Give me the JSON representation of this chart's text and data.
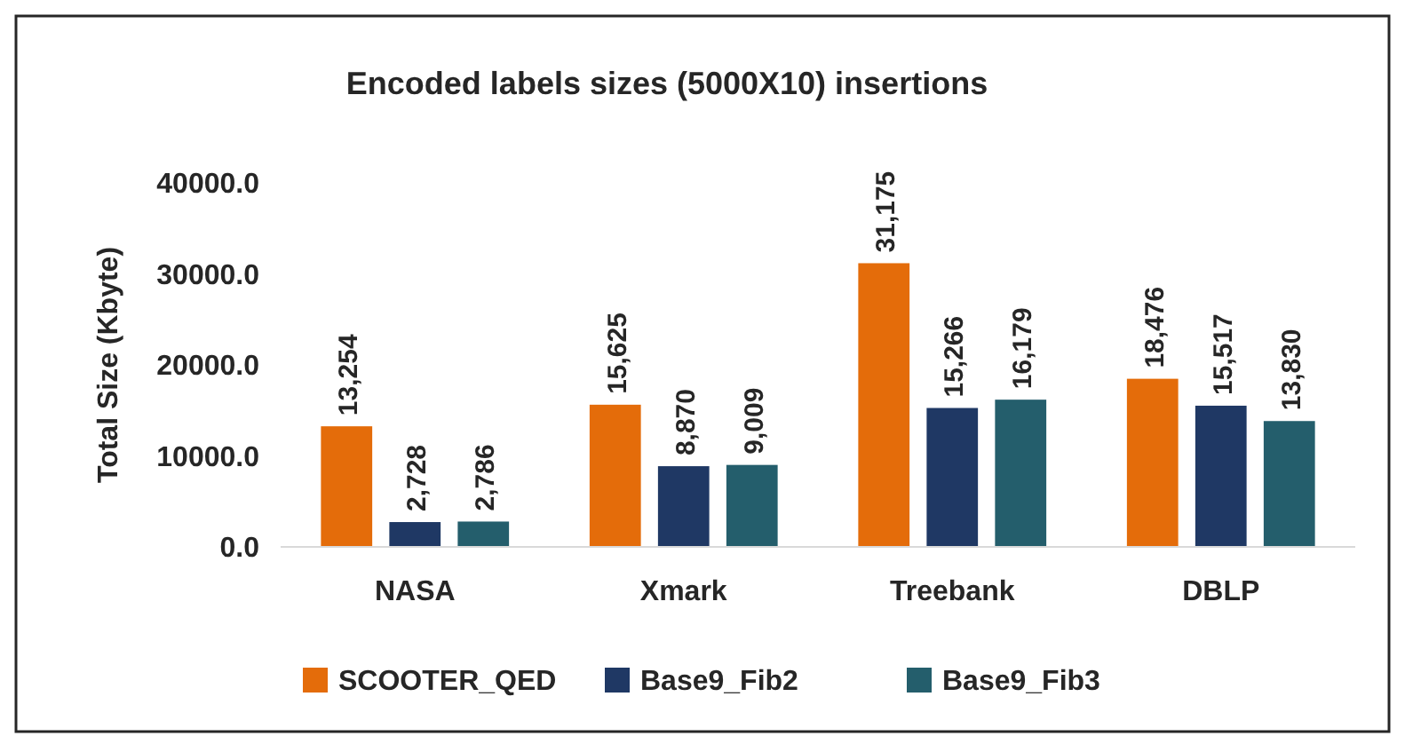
{
  "chart_data": {
    "type": "bar",
    "title": "Encoded labels sizes (5000X10) insertions",
    "ylabel": "Total Size (Kbyte)",
    "categories": [
      "NASA",
      "Xmark",
      "Treebank",
      "DBLP"
    ],
    "series": [
      {
        "name": "SCOOTER_QED",
        "color": "#e46c0a",
        "values": [
          13254,
          15625,
          31175,
          18476
        ],
        "value_labels": [
          "13,254",
          "15,625",
          "31,175",
          "18,476"
        ]
      },
      {
        "name": "Base9_Fib2",
        "color": "#1f3864",
        "values": [
          2728,
          8870,
          15266,
          15517
        ],
        "value_labels": [
          "2,728",
          "8,870",
          "15,266",
          "15,517"
        ]
      },
      {
        "name": "Base9_Fib3",
        "color": "#245e6c",
        "values": [
          2786,
          9009,
          16179,
          13830
        ],
        "value_labels": [
          "2,786",
          "9,009",
          "16,179",
          "13,830"
        ]
      }
    ],
    "ylim": [
      0,
      40000
    ],
    "yticks": [
      {
        "value": 0,
        "label": "0.0"
      },
      {
        "value": 10000,
        "label": "10000.0"
      },
      {
        "value": 20000,
        "label": "20000.0"
      },
      {
        "value": 30000,
        "label": "30000.0"
      },
      {
        "value": 40000,
        "label": "40000.0"
      }
    ],
    "grid": false,
    "legend": "bottom"
  }
}
